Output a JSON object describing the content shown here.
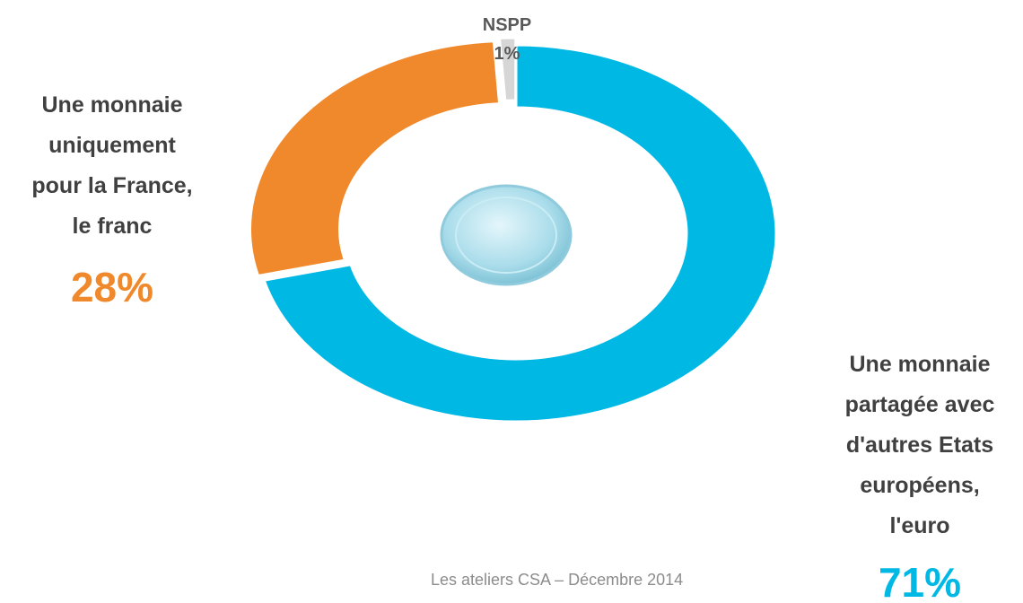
{
  "chart_data": {
    "type": "donut",
    "categories": [
      "Une monnaie\npartagée avec\nd'autres Etats\neuropéens,\nl'euro",
      "Une monnaie\nuniquement\npour la France,\nle franc",
      "NSPP"
    ],
    "values": [
      71,
      28,
      1
    ],
    "value_labels": [
      "71%",
      "28%",
      "1%"
    ],
    "colors": [
      "#00b8e4",
      "#f0892b",
      "#d6d6d6"
    ],
    "footer": "Les ateliers CSA – Décembre 2014"
  }
}
